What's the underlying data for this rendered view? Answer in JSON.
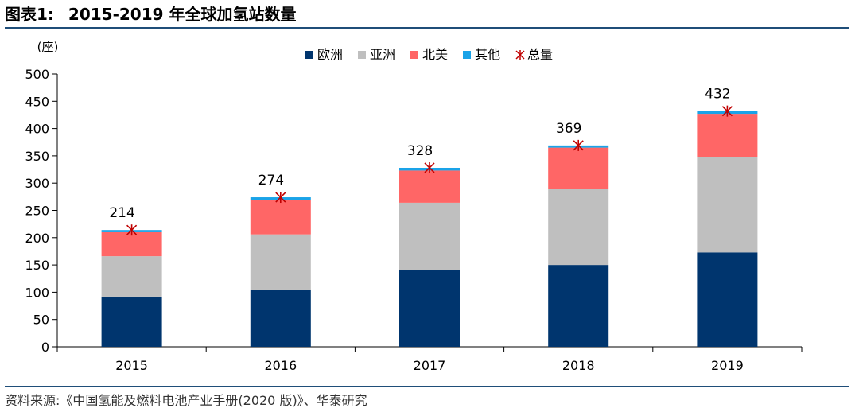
{
  "header": {
    "figure_label": "图表1:",
    "title": "2015-2019 年全球加氢站数量"
  },
  "footer": {
    "source": "资料来源:《中国氢能及燃料电池产业手册(2020 版)》、华泰研究"
  },
  "chart_data": {
    "type": "bar",
    "stacked": true,
    "ylabel": "(座)",
    "categories": [
      "2015",
      "2016",
      "2017",
      "2018",
      "2019"
    ],
    "yticks": [
      "0",
      "50",
      "100",
      "150",
      "200",
      "250",
      "300",
      "350",
      "400",
      "450",
      "500"
    ],
    "ylim": [
      0,
      500
    ],
    "legend_position": "top",
    "grid": false,
    "series": [
      {
        "name": "欧洲",
        "color": "#00356e",
        "values": [
          92,
          105,
          141,
          150,
          173
        ]
      },
      {
        "name": "亚洲",
        "color": "#bfbfbf",
        "values": [
          74,
          101,
          123,
          139,
          175
        ]
      },
      {
        "name": "北美",
        "color": "#ff6666",
        "values": [
          44,
          63,
          59,
          76,
          79
        ]
      },
      {
        "name": "其他",
        "color": "#1aa3e8",
        "values": [
          4,
          5,
          5,
          4,
          5
        ]
      }
    ],
    "total": {
      "name": "总量",
      "color": "#c00000",
      "values": [
        214,
        274,
        328,
        369,
        432
      ],
      "labels": [
        "214",
        "274",
        "328",
        "369",
        "432"
      ]
    }
  }
}
